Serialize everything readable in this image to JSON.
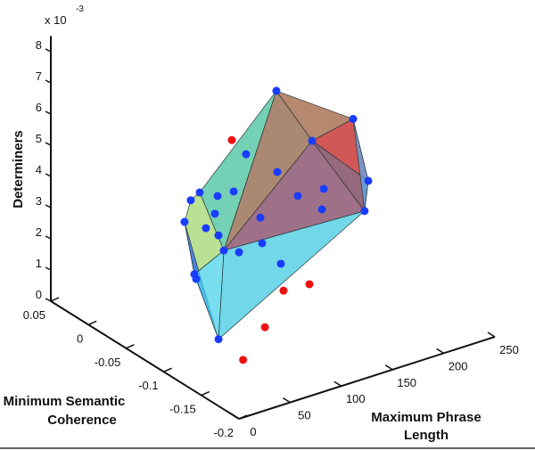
{
  "chart_data": {
    "type": "scatter3d-convex-hull",
    "xlabel": [
      "Maximum Phrase",
      "Length"
    ],
    "ylabel": [
      "Minimum Semantic",
      "Coherence"
    ],
    "zlabel": "Determiners",
    "z_exponent_label": "x 10",
    "z_exponent": "-3",
    "xlim": [
      0,
      250
    ],
    "ylim": [
      -0.2,
      0.05
    ],
    "zlim": [
      0,
      0.008
    ],
    "x_ticks": [
      "0",
      "50",
      "100",
      "150",
      "200",
      "250"
    ],
    "y_ticks": [
      "0.05",
      "0",
      "-0.05",
      "-0.1",
      "-0.15",
      "-0.2"
    ],
    "z_ticks": [
      "0",
      "1",
      "2",
      "3",
      "4",
      "5",
      "6",
      "7",
      "8"
    ],
    "grid": false,
    "colors": {
      "inside": "#1a3cff",
      "outside": "#ee1111"
    },
    "hull_vertices": [
      [
        146.8,
        -0.05,
        0.00671
      ],
      [
        221.8,
        -0.05,
        0.00502
      ],
      [
        236.6,
        -0.05,
        0.00288
      ],
      [
        233.0,
        -0.05,
        0.00195
      ],
      [
        69.0,
        -0.079,
        0.0
      ],
      [
        63.2,
        -0.05,
        0.00408
      ],
      [
        71.9,
        -0.05,
        0.00424
      ],
      [
        57.1,
        -0.05,
        0.00345
      ],
      [
        66.7,
        -0.05,
        0.00167
      ],
      [
        95.5,
        -0.05,
        0.00213
      ],
      [
        181.7,
        -0.05,
        0.00474
      ]
    ],
    "hull_faces": [
      {
        "v": [
          0,
          6,
          9
        ],
        "color": "#3fbf9a"
      },
      {
        "v": [
          0,
          9,
          10
        ],
        "color": "#8a5a3a"
      },
      {
        "v": [
          0,
          1,
          10
        ],
        "color": "#9a5a38"
      },
      {
        "v": [
          1,
          2,
          10
        ],
        "color": "#c01818"
      },
      {
        "v": [
          10,
          2,
          3
        ],
        "color": "#6e2f4a"
      },
      {
        "v": [
          9,
          10,
          3
        ],
        "color": "#7a3a5c"
      },
      {
        "v": [
          9,
          3,
          4
        ],
        "color": "#3cc8e0"
      },
      {
        "v": [
          6,
          5,
          7,
          8,
          9
        ],
        "color": "#9fd66a"
      },
      {
        "v": [
          7,
          8,
          4
        ],
        "color": "#1f5bff"
      },
      {
        "v": [
          8,
          9,
          4
        ],
        "color": "#44d0e8"
      },
      {
        "v": [
          1,
          2,
          3
        ],
        "color": "#5aaaf0"
      }
    ],
    "inside_points": [
      [
        117.2,
        -0.05,
        0.00499
      ],
      [
        147.7,
        -0.05,
        0.0041
      ],
      [
        89.4,
        -0.05,
        0.00394
      ],
      [
        105.1,
        -0.05,
        0.00392
      ],
      [
        86.8,
        -0.05,
        0.0034
      ],
      [
        131.2,
        -0.05,
        0.00281
      ],
      [
        78.0,
        -0.05,
        0.00303
      ],
      [
        90.2,
        -0.05,
        0.00267
      ],
      [
        132.9,
        -0.05,
        0.00197
      ],
      [
        110.3,
        -0.05,
        0.00192
      ],
      [
        151.2,
        -0.05,
        0.00112
      ],
      [
        167.8,
        -0.05,
        0.00312
      ],
      [
        193.1,
        -0.05,
        0.00308
      ],
      [
        191.3,
        -0.05,
        0.00244
      ],
      [
        68.5,
        -0.05,
        0.0015
      ]
    ],
    "outside_points": [
      [
        103.3,
        -0.05,
        0.00559
      ],
      [
        153.8,
        -0.05,
        0.00023
      ],
      [
        179.1,
        -0.05,
        0.00017
      ],
      [
        111.4,
        -0.083,
        0.0
      ],
      [
        63.6,
        -0.119,
        0.0
      ]
    ]
  }
}
